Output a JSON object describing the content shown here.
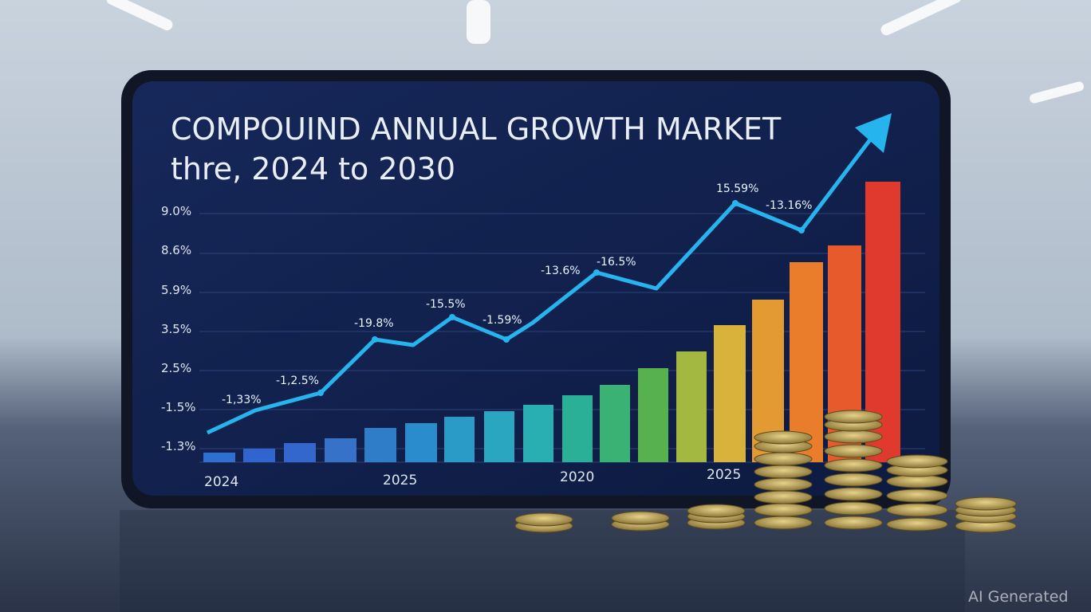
{
  "screen": {
    "title_lines": [
      "COMPOUIND ANNUAL GROWTH  MARKET",
      "thre, 2024 to 2030"
    ],
    "y_labels": [
      "9.0%",
      "8.6%",
      "5.9%",
      "3.5%",
      "2.5%",
      "-1.5%",
      "-1.3%"
    ],
    "x_labels": [
      "2024",
      "2025",
      "2020",
      "2025"
    ],
    "point_labels": [
      "-1,33%",
      "-1,2.5%",
      "-19.8%",
      "-15.5%",
      "-1.59%",
      "-13.6%",
      "-16.5%",
      "15.59%",
      "-13.16%"
    ]
  },
  "watermark": "AI Generated"
}
